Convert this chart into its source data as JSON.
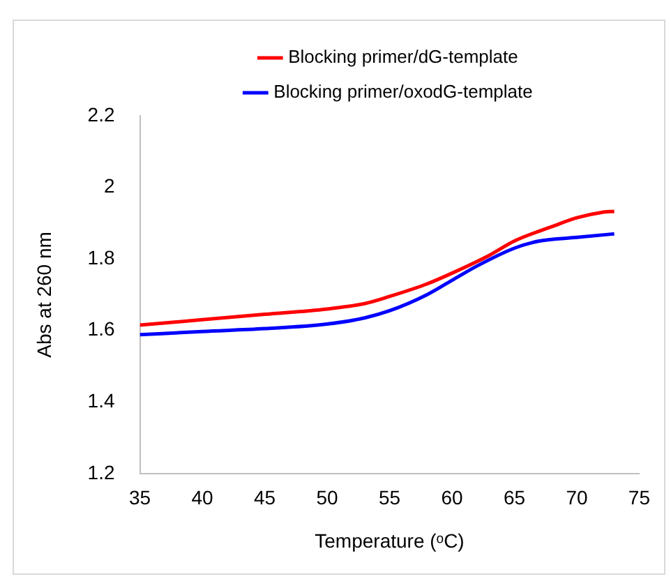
{
  "chart_data": {
    "type": "line",
    "xlabel": "Temperature (ᵒC)",
    "ylabel": "Abs at 260 nm",
    "xlim": [
      35,
      75
    ],
    "xticks": [
      35,
      40,
      45,
      50,
      55,
      60,
      65,
      70,
      75
    ],
    "ylim": [
      1.2,
      2.2
    ],
    "yticks": [
      1.2,
      1.4,
      1.6,
      1.8,
      2,
      2.2
    ],
    "grid": false,
    "legend": "top",
    "marker": "none",
    "line_style": "solid",
    "series": [
      {
        "name": "Blocking primer/dG-template",
        "color": "#ff0000",
        "x": [
          35,
          40,
          45,
          50,
          53,
          55,
          58,
          60,
          63,
          65,
          68,
          70,
          72,
          73
        ],
        "values": [
          1.615,
          1.63,
          1.645,
          1.66,
          1.675,
          1.695,
          1.73,
          1.76,
          1.81,
          1.85,
          1.89,
          1.915,
          1.93,
          1.933
        ]
      },
      {
        "name": "Blocking primer/oxodG-template",
        "color": "#0000ff",
        "x": [
          35,
          40,
          45,
          50,
          53,
          55,
          58,
          60,
          62,
          65,
          67,
          70,
          73
        ],
        "values": [
          1.588,
          1.597,
          1.605,
          1.618,
          1.635,
          1.655,
          1.7,
          1.74,
          1.78,
          1.83,
          1.85,
          1.86,
          1.87
        ]
      }
    ]
  }
}
